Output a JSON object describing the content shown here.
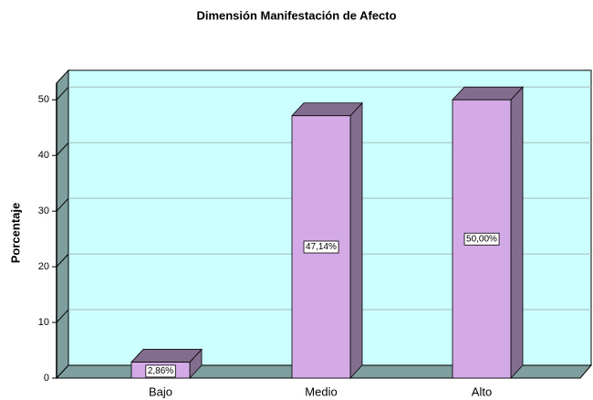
{
  "chart_data": {
    "type": "bar",
    "title": "Dimensión Manifestación de Afecto",
    "y_label": "Porcentaje",
    "categories": [
      "Bajo",
      "Medio",
      "Alto"
    ],
    "values": [
      2.86,
      47.14,
      50.0
    ],
    "value_labels": [
      "2,86%",
      "47,14%",
      "50,00%"
    ],
    "color": "#d3a9e6",
    "ylim": [
      0,
      53
    ],
    "yticks": [
      0,
      10,
      20,
      30,
      40,
      50
    ],
    "grid": true
  }
}
